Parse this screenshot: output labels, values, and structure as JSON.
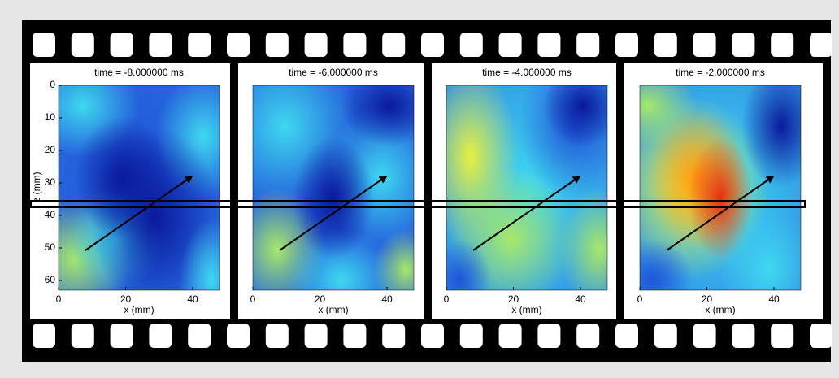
{
  "figure": {
    "panels": [
      {
        "title": "time = -8.000000 ms"
      },
      {
        "title": "time = -6.000000 ms"
      },
      {
        "title": "time = -4.000000 ms"
      },
      {
        "title": "time = -2.000000 ms"
      }
    ],
    "xlabel": "x (mm)",
    "ylabel": "z (mm)",
    "xlim": [
      0,
      48
    ],
    "xticks": [
      0,
      20,
      40
    ],
    "ylim": [
      0,
      63
    ],
    "yticks": [
      0,
      10,
      20,
      30,
      40,
      50,
      60
    ]
  }
}
